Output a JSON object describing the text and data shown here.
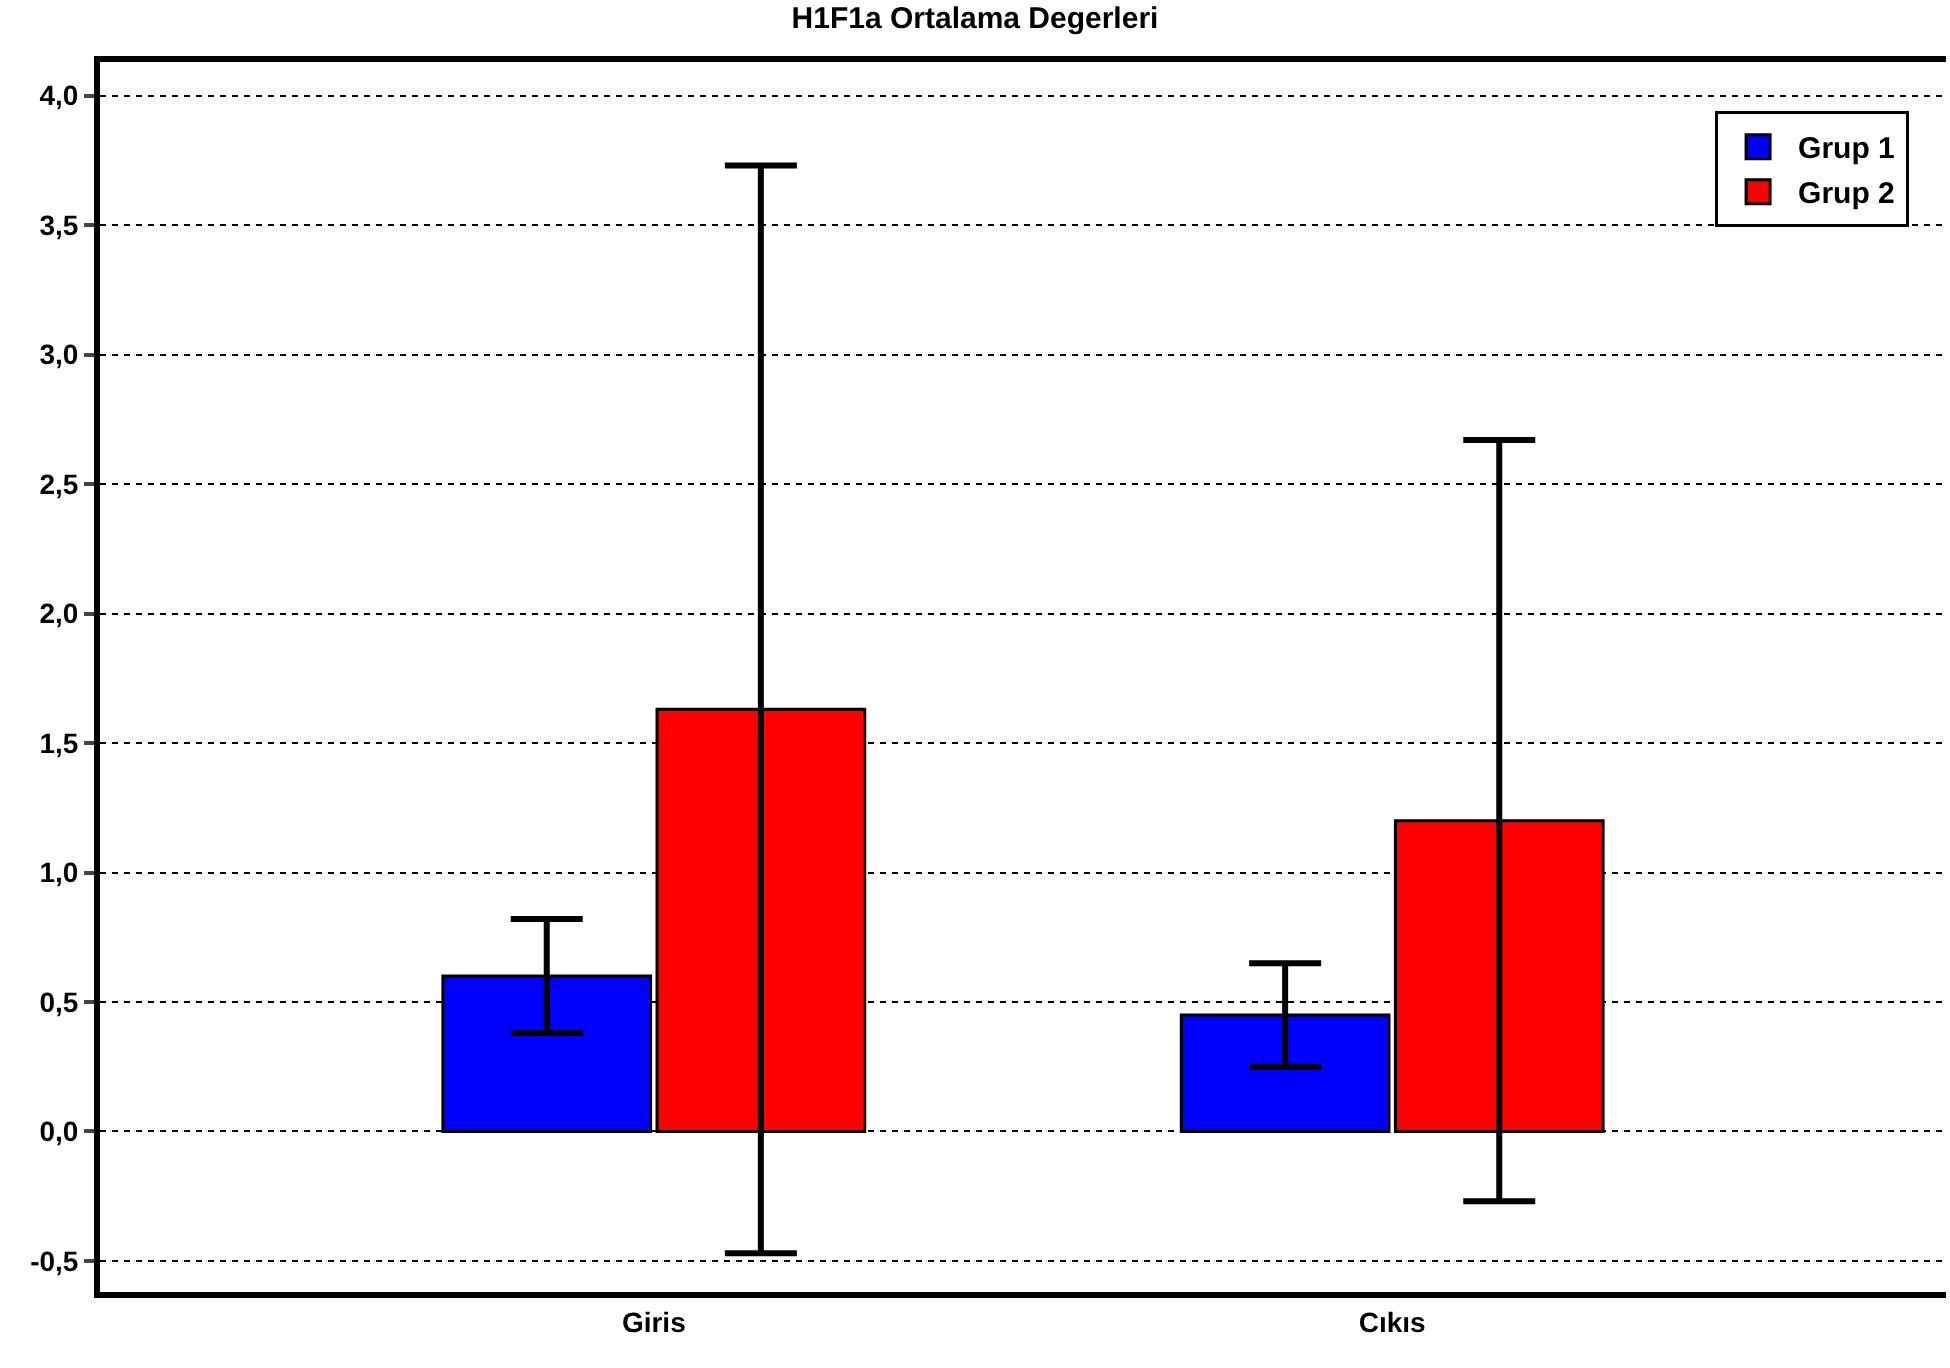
{
  "chart_data": {
    "type": "bar",
    "title": "H1F1a Ortalama Degerleri",
    "categories": [
      "Giris",
      "Cıkıs"
    ],
    "series": [
      {
        "name": "Grup 1",
        "color": "#0000ff",
        "values": [
          0.6,
          0.45
        ],
        "errors": [
          0.22,
          0.2
        ]
      },
      {
        "name": "Grup 2",
        "color": "#ff0000",
        "values": [
          1.63,
          1.2
        ],
        "errors": [
          2.1,
          1.47
        ]
      }
    ],
    "ylim": [
      -0.62,
      4.13
    ],
    "yticks": [
      {
        "value": -0.5,
        "label": "-0,5"
      },
      {
        "value": 0,
        "label": "0,0"
      },
      {
        "value": 0.5,
        "label": "0,5"
      },
      {
        "value": 1,
        "label": "1,0"
      },
      {
        "value": 1.5,
        "label": "1,5"
      },
      {
        "value": 2,
        "label": "2,0"
      },
      {
        "value": 2.5,
        "label": "2,5"
      },
      {
        "value": 3,
        "label": "3,0"
      },
      {
        "value": 3.5,
        "label": "3,5"
      },
      {
        "value": 4,
        "label": "4,0"
      }
    ],
    "grid": "y",
    "legend": "top right"
  }
}
